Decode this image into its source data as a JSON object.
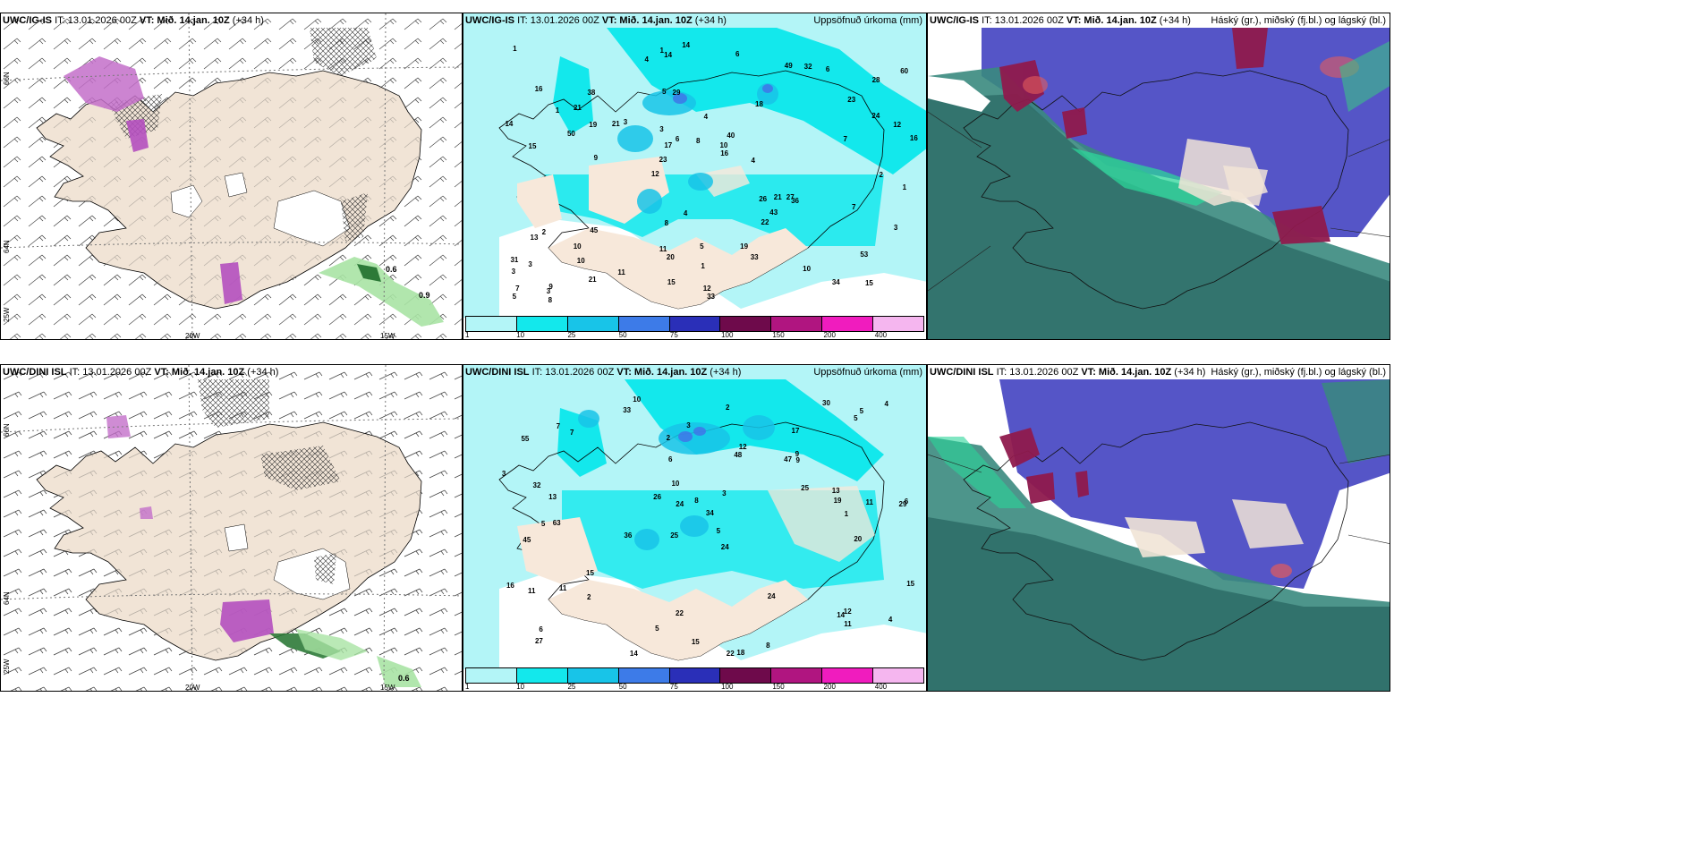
{
  "panels": {
    "top_left": {
      "model": "UWC/IG-IS",
      "it": "IT: 13.01.2026 00Z",
      "vt_label": "VT:",
      "vt": "Mið. 14.jan. 10Z",
      "lead": "(+34 h)"
    },
    "top_mid": {
      "model": "UWC/IG-IS",
      "it": "IT: 13.01.2026 00Z",
      "vt_label": "VT:",
      "vt": "Mið. 14.jan. 10Z",
      "lead": "(+34 h)",
      "right_title": "Uppsöfnuð úrkoma (mm)"
    },
    "top_right": {
      "model": "UWC/IG-IS",
      "it": "IT: 13.01.2026 00Z",
      "vt_label": "VT:",
      "vt": "Mið. 14.jan. 10Z",
      "lead": "(+34 h)",
      "right_title": "Háský (gr.), miðský (fj.bl.) og lágský (bl.)"
    },
    "bot_left": {
      "model": "UWC/DINI ISL",
      "it": "IT: 13.01.2026 00Z",
      "vt_label": "VT:",
      "vt": "Mið. 14.jan. 10Z",
      "lead": "(+34 h)"
    },
    "bot_mid": {
      "model": "UWC/DINI ISL",
      "it": "IT: 13.01.2026 00Z",
      "vt_label": "VT:",
      "vt": "Mið. 14.jan. 10Z",
      "lead": "(+34 h)",
      "right_title": "Uppsöfnuð úrkoma (mm)"
    },
    "bot_right": {
      "model": "UWC/DINI ISL",
      "it": "IT: 13.01.2026 00Z",
      "vt_label": "VT:",
      "vt": "Mið. 14.jan. 10Z",
      "lead": "(+34 h)",
      "right_title": "Háský (gr.), miðský (fj.bl.) og lágský (bl.)"
    }
  },
  "axes": {
    "lat66": "66N",
    "lat64": "64N",
    "lon25": "25W",
    "lon20": "20W",
    "lon15": "15W"
  },
  "precip_legend": {
    "ticks": [
      "1",
      "10",
      "25",
      "50",
      "75",
      "100",
      "150",
      "200",
      "400"
    ],
    "colors": [
      "#b3f5f7",
      "#13e8ec",
      "#18c4e8",
      "#3d7be8",
      "#2a2fb8",
      "#6e0a4b",
      "#b01580",
      "#f01cbe",
      "#f5b6ef"
    ]
  },
  "wind_panel_values": {
    "top": [
      "0.6",
      "0.9"
    ],
    "bottom": [
      "0.6"
    ]
  },
  "precip_values_top": [
    "15",
    "15",
    "28",
    "12",
    "18",
    "9",
    "5",
    "4",
    "2",
    "3",
    "3",
    "10",
    "29",
    "40",
    "36",
    "16",
    "14",
    "16",
    "26",
    "24",
    "23",
    "11",
    "17",
    "38",
    "49",
    "45",
    "34",
    "53",
    "27",
    "33",
    "21",
    "50",
    "22",
    "21",
    "12",
    "10",
    "7",
    "20",
    "16",
    "13",
    "23",
    "60",
    "43",
    "33",
    "10",
    "8",
    "5",
    "5",
    "6",
    "14",
    "9",
    "14",
    "21",
    "32",
    "3",
    "6",
    "4",
    "6",
    "3",
    "8",
    "11",
    "21",
    "19",
    "31",
    "1",
    "1",
    "1",
    "3",
    "1",
    "8",
    "3",
    "4",
    "7",
    "15",
    "7",
    "4",
    "10",
    "12",
    "19",
    "1",
    "2"
  ],
  "precip_values_bottom": [
    "10",
    "17",
    "29",
    "25",
    "24",
    "63",
    "55",
    "47",
    "45",
    "48",
    "34",
    "27",
    "33",
    "36",
    "22",
    "18",
    "22",
    "30",
    "25",
    "15",
    "13",
    "5",
    "6",
    "11",
    "16",
    "32",
    "24",
    "19",
    "12",
    "11",
    "14",
    "12",
    "11",
    "26",
    "24",
    "15",
    "13",
    "5",
    "4",
    "3",
    "6",
    "14",
    "8",
    "7",
    "15",
    "9",
    "11",
    "9",
    "3",
    "5",
    "2",
    "1",
    "3",
    "5",
    "2",
    "2",
    "10",
    "8",
    "5",
    "6",
    "4",
    "20",
    "7"
  ]
}
